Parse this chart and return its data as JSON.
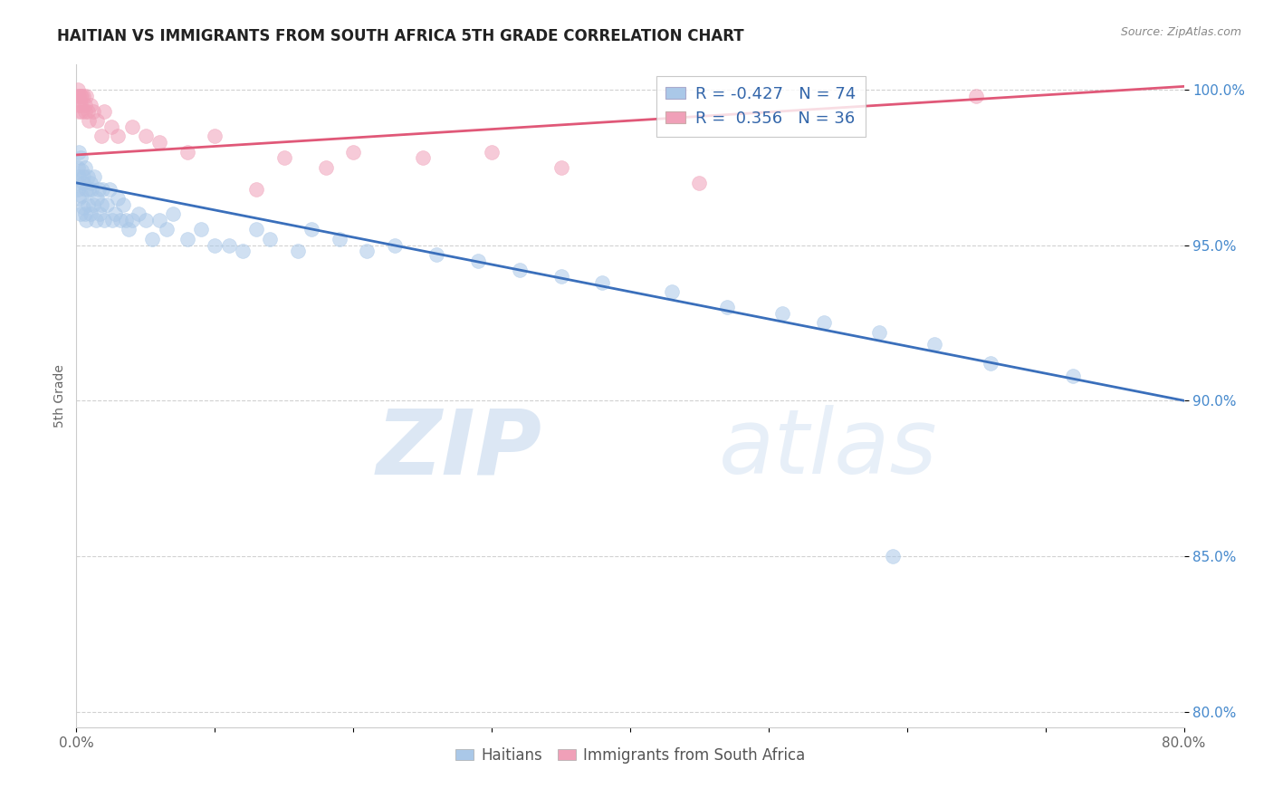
{
  "title": "HAITIAN VS IMMIGRANTS FROM SOUTH AFRICA 5TH GRADE CORRELATION CHART",
  "source": "Source: ZipAtlas.com",
  "ylabel": "5th Grade",
  "xmin": 0.0,
  "xmax": 0.8,
  "ymin": 0.795,
  "ymax": 1.008,
  "xticks": [
    0.0,
    0.1,
    0.2,
    0.3,
    0.4,
    0.5,
    0.6,
    0.7,
    0.8
  ],
  "ytick_labels": [
    "80.0%",
    "85.0%",
    "90.0%",
    "95.0%",
    "100.0%"
  ],
  "yticks": [
    0.8,
    0.85,
    0.9,
    0.95,
    1.0
  ],
  "blue_color": "#aac8e8",
  "pink_color": "#f0a0b8",
  "blue_line_color": "#3a6fbb",
  "pink_line_color": "#e05878",
  "legend_blue_label": "R = -0.427   N = 74",
  "legend_pink_label": "R =  0.356   N = 36",
  "watermark_zip": "ZIP",
  "watermark_atlas": "atlas",
  "blue_trend_x0": 0.0,
  "blue_trend_y0": 0.97,
  "blue_trend_x1": 0.8,
  "blue_trend_y1": 0.9,
  "pink_trend_x0": 0.0,
  "pink_trend_y0": 0.979,
  "pink_trend_x1": 0.8,
  "pink_trend_y1": 1.001,
  "blue_x": [
    0.001,
    0.001,
    0.001,
    0.002,
    0.002,
    0.002,
    0.003,
    0.003,
    0.004,
    0.004,
    0.005,
    0.005,
    0.005,
    0.006,
    0.006,
    0.007,
    0.007,
    0.008,
    0.008,
    0.009,
    0.01,
    0.01,
    0.011,
    0.012,
    0.013,
    0.014,
    0.015,
    0.016,
    0.017,
    0.018,
    0.019,
    0.02,
    0.022,
    0.024,
    0.026,
    0.028,
    0.03,
    0.032,
    0.034,
    0.036,
    0.038,
    0.04,
    0.045,
    0.05,
    0.055,
    0.06,
    0.065,
    0.07,
    0.08,
    0.09,
    0.1,
    0.11,
    0.12,
    0.13,
    0.14,
    0.16,
    0.17,
    0.19,
    0.21,
    0.23,
    0.26,
    0.29,
    0.32,
    0.35,
    0.38,
    0.43,
    0.47,
    0.51,
    0.54,
    0.58,
    0.62,
    0.66,
    0.72,
    0.59
  ],
  "blue_y": [
    0.975,
    0.97,
    0.968,
    0.98,
    0.972,
    0.965,
    0.978,
    0.96,
    0.974,
    0.966,
    0.972,
    0.962,
    0.97,
    0.975,
    0.96,
    0.968,
    0.958,
    0.972,
    0.963,
    0.968,
    0.97,
    0.96,
    0.968,
    0.963,
    0.972,
    0.958,
    0.965,
    0.968,
    0.96,
    0.963,
    0.968,
    0.958,
    0.963,
    0.968,
    0.958,
    0.96,
    0.965,
    0.958,
    0.963,
    0.958,
    0.955,
    0.958,
    0.96,
    0.958,
    0.952,
    0.958,
    0.955,
    0.96,
    0.952,
    0.955,
    0.95,
    0.95,
    0.948,
    0.955,
    0.952,
    0.948,
    0.955,
    0.952,
    0.948,
    0.95,
    0.947,
    0.945,
    0.942,
    0.94,
    0.938,
    0.935,
    0.93,
    0.928,
    0.925,
    0.922,
    0.918,
    0.912,
    0.908,
    0.85
  ],
  "pink_x": [
    0.001,
    0.001,
    0.002,
    0.002,
    0.002,
    0.003,
    0.003,
    0.004,
    0.004,
    0.005,
    0.006,
    0.006,
    0.007,
    0.008,
    0.009,
    0.01,
    0.012,
    0.015,
    0.018,
    0.02,
    0.025,
    0.03,
    0.04,
    0.05,
    0.06,
    0.08,
    0.1,
    0.15,
    0.2,
    0.25,
    0.3,
    0.35,
    0.45,
    0.65,
    0.13,
    0.18
  ],
  "pink_y": [
    1.0,
    0.998,
    0.998,
    0.995,
    0.993,
    0.998,
    0.995,
    0.998,
    0.993,
    0.998,
    0.995,
    0.993,
    0.998,
    0.993,
    0.99,
    0.995,
    0.993,
    0.99,
    0.985,
    0.993,
    0.988,
    0.985,
    0.988,
    0.985,
    0.983,
    0.98,
    0.985,
    0.978,
    0.98,
    0.978,
    0.98,
    0.975,
    0.97,
    0.998,
    0.968,
    0.975
  ]
}
